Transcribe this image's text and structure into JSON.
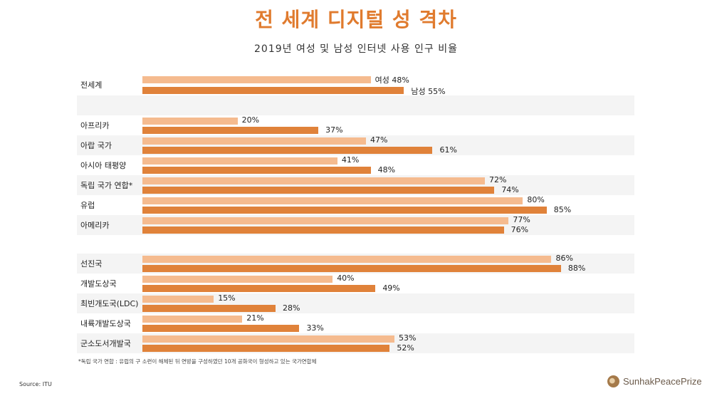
{
  "title": "전 세계 디지털 성 격차",
  "subtitle": "2019년 여성 및 남성 인터넷 사용 인구 비율",
  "footnote": "*독립 국가 연합 : 유럽의 구 소련이 해체된 뒤 연방을 구성하였던 10개 공화국이 형성하고 있는 국가연합체",
  "source": "Source: ITU",
  "logo_text": "SunhakPeacePrize",
  "colors": {
    "female": "#f5bb8f",
    "male": "#e0823a",
    "accent": "#e07b2e"
  },
  "chart_data": {
    "type": "bar",
    "orientation": "horizontal",
    "title": "전 세계 디지털 성 격차",
    "subtitle": "2019년 여성 및 남성 인터넷 사용 인구 비율",
    "xlim": [
      0,
      100
    ],
    "unit": "%",
    "series_names": {
      "female": "여성",
      "male": "남성"
    },
    "groups": [
      {
        "rows": [
          {
            "category": "전세계",
            "female": 48,
            "male": 55,
            "female_label": "여성 48%",
            "male_label": "남성 55%"
          }
        ]
      },
      {
        "rows": [
          {
            "category": "아프리카",
            "female": 20,
            "male": 37,
            "female_label": "20%",
            "male_label": "37%"
          },
          {
            "category": "아랍 국가",
            "female": 47,
            "male": 61,
            "female_label": "47%",
            "male_label": "61%"
          },
          {
            "category": "아시아 태평양",
            "female": 41,
            "male": 48,
            "female_label": "41%",
            "male_label": "48%"
          },
          {
            "category": "독립 국가 연합*",
            "female": 72,
            "male": 74,
            "female_label": "72%",
            "male_label": "74%"
          },
          {
            "category": "유럽",
            "female": 80,
            "male": 85,
            "female_label": "80%",
            "male_label": "85%"
          },
          {
            "category": "아메리카",
            "female": 77,
            "male": 76,
            "female_label": "77%",
            "male_label": "76%"
          }
        ]
      },
      {
        "rows": [
          {
            "category": "선진국",
            "female": 86,
            "male": 88,
            "female_label": "86%",
            "male_label": "88%"
          },
          {
            "category": "개발도상국",
            "female": 40,
            "male": 49,
            "female_label": "40%",
            "male_label": "49%"
          },
          {
            "category": "최빈개도국(LDC)",
            "female": 15,
            "male": 28,
            "female_label": "15%",
            "male_label": "28%"
          },
          {
            "category": "내륙개발도상국",
            "female": 21,
            "male": 33,
            "female_label": "21%",
            "male_label": "33%"
          },
          {
            "category": "군소도서개발국",
            "female": 53,
            "male": 52,
            "female_label": "53%",
            "male_label": "52%"
          }
        ]
      }
    ]
  }
}
